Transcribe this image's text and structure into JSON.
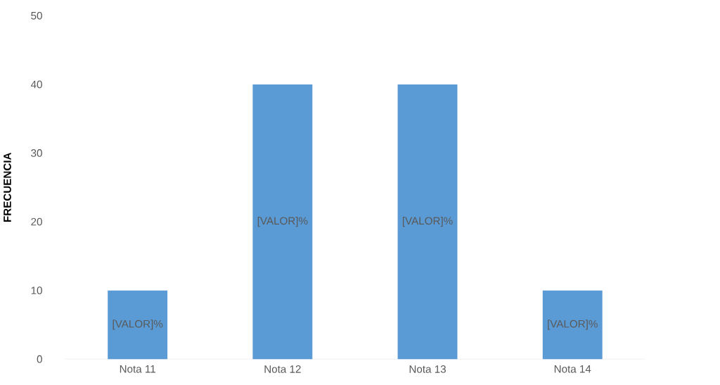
{
  "chart_data": {
    "type": "bar",
    "ylabel": "FRECUENCIA",
    "categories": [
      "Nota 11",
      "Nota 12",
      "Nota 13",
      "Nota 14"
    ],
    "values": [
      10,
      40,
      40,
      10
    ],
    "value_labels": [
      "[VALOR]%",
      "[VALOR]%",
      "[VALOR]%",
      "[VALOR]%"
    ],
    "color": "#5b9bd5",
    "ylim": [
      0,
      50
    ],
    "yticks": [
      0,
      10,
      20,
      30,
      40,
      50
    ]
  }
}
